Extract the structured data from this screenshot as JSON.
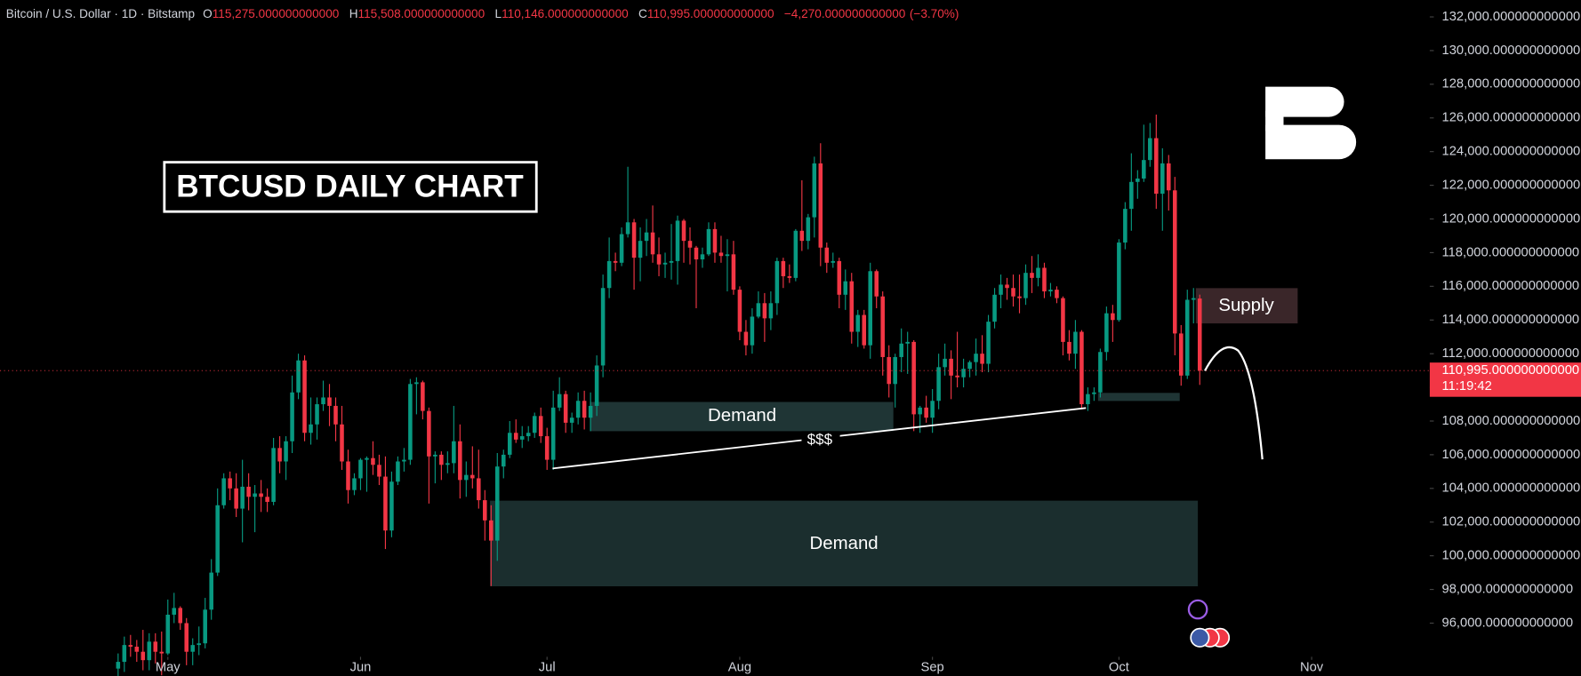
{
  "chart_data": {
    "type": "candlestick",
    "header": {
      "symbol": "Bitcoin / U.S. Dollar · 1D · Bitstamp",
      "ohlc": [
        {
          "key": "O",
          "value": 115275,
          "label": "115,275.000000000000"
        },
        {
          "key": "H",
          "value": 115508,
          "label": "115,508.000000000000"
        },
        {
          "key": "L",
          "value": 110146,
          "label": "110,146.000000000000"
        },
        {
          "key": "C",
          "value": 110995,
          "label": "110,995.000000000000"
        }
      ],
      "change": {
        "value": -4270,
        "label": "−4,270.000000000000"
      },
      "change_pct": {
        "value": -3.7,
        "label": "(−3.70%)"
      }
    },
    "annotations": {
      "title": "BTCUSD DAILY CHART",
      "supply": "Supply",
      "demand_upper": "Demand",
      "demand_lower": "Demand",
      "liquidity": "$$$"
    },
    "last_price": {
      "value": 110995,
      "label": "110,995.000000000000"
    },
    "countdown": "11:19:42",
    "colors": {
      "up": "#089981",
      "down": "#f23645"
    },
    "grid": false,
    "xlim": [
      -19,
      211
    ],
    "xticks": [
      {
        "value": 8,
        "label": "May"
      },
      {
        "value": 39,
        "label": "Jun"
      },
      {
        "value": 69,
        "label": "Jul"
      },
      {
        "value": 100,
        "label": "Aug"
      },
      {
        "value": 131,
        "label": "Sep"
      },
      {
        "value": 161,
        "label": "Oct"
      },
      {
        "value": 192,
        "label": "Nov"
      }
    ],
    "ylim": [
      94000,
      133000
    ],
    "yticks": [
      {
        "value": 96000,
        "label": "96,000.000000000000"
      },
      {
        "value": 98000,
        "label": "98,000.000000000000"
      },
      {
        "value": 100000,
        "label": "100,000.000000000000"
      },
      {
        "value": 102000,
        "label": "102,000.000000000000"
      },
      {
        "value": 104000,
        "label": "104,000.000000000000"
      },
      {
        "value": 106000,
        "label": "106,000.000000000000"
      },
      {
        "value": 108000,
        "label": "108,000.000000000000"
      },
      {
        "value": 110000,
        "label": "110,000.000000000000"
      },
      {
        "value": 112000,
        "label": "112,000.000000000000"
      },
      {
        "value": 114000,
        "label": "114,000.000000000000"
      },
      {
        "value": 116000,
        "label": "116,000.000000000000"
      },
      {
        "value": 118000,
        "label": "118,000.000000000000"
      },
      {
        "value": 120000,
        "label": "120,000.000000000000"
      },
      {
        "value": 122000,
        "label": "122,000.000000000000"
      },
      {
        "value": 124000,
        "label": "124,000.000000000000"
      },
      {
        "value": 126000,
        "label": "126,000.000000000000"
      },
      {
        "value": 128000,
        "label": "128,000.000000000000"
      },
      {
        "value": 130000,
        "label": "130,000.000000000000"
      },
      {
        "value": 132000,
        "label": "132,000.000000000000"
      }
    ],
    "candles": [
      [
        93300,
        94200,
        92700,
        93700
      ],
      [
        93700,
        95200,
        93100,
        94700
      ],
      [
        94700,
        95300,
        94000,
        94600
      ],
      [
        94600,
        95000,
        93700,
        94300
      ],
      [
        94300,
        95600,
        93200,
        93800
      ],
      [
        93800,
        95400,
        93200,
        94900
      ],
      [
        94900,
        95400,
        93600,
        94300
      ],
      [
        94300,
        95500,
        92900,
        94200
      ],
      [
        94200,
        97400,
        94100,
        96500
      ],
      [
        96500,
        97800,
        96000,
        96900
      ],
      [
        96900,
        97000,
        95600,
        96000
      ],
      [
        96000,
        96300,
        93500,
        94300
      ],
      [
        94300,
        95100,
        93500,
        94700
      ],
      [
        94700,
        95800,
        94100,
        94800
      ],
      [
        94800,
        97500,
        94500,
        96800
      ],
      [
        96800,
        99800,
        96200,
        99000
      ],
      [
        99000,
        104000,
        98800,
        103000
      ],
      [
        103000,
        104900,
        102800,
        104600
      ],
      [
        104600,
        105000,
        103300,
        104000
      ],
      [
        104000,
        104900,
        102300,
        102800
      ],
      [
        102800,
        105700,
        100800,
        104100
      ],
      [
        104100,
        104900,
        102700,
        103500
      ],
      [
        103500,
        104200,
        101400,
        103700
      ],
      [
        103700,
        104500,
        102600,
        103500
      ],
      [
        103500,
        104000,
        102600,
        103200
      ],
      [
        103200,
        107000,
        103000,
        106400
      ],
      [
        106400,
        107100,
        104900,
        105600
      ],
      [
        105600,
        107100,
        104500,
        106800
      ],
      [
        106800,
        110700,
        106100,
        109700
      ],
      [
        109700,
        112000,
        109300,
        111600
      ],
      [
        111600,
        111900,
        106800,
        107300
      ],
      [
        107300,
        109400,
        106600,
        107800
      ],
      [
        107800,
        109400,
        106900,
        109000
      ],
      [
        109000,
        110400,
        108600,
        109400
      ],
      [
        109400,
        110200,
        107700,
        108900
      ],
      [
        108900,
        109400,
        106800,
        107800
      ],
      [
        107800,
        108900,
        105100,
        105600
      ],
      [
        105600,
        106300,
        103100,
        103900
      ],
      [
        103900,
        104900,
        103600,
        104600
      ],
      [
        104600,
        105800,
        103900,
        105700
      ],
      [
        105700,
        105900,
        103800,
        105800
      ],
      [
        105800,
        106800,
        104800,
        105400
      ],
      [
        105400,
        106000,
        104200,
        104700
      ],
      [
        104700,
        105900,
        100400,
        101500
      ],
      [
        101500,
        105000,
        101100,
        104400
      ],
      [
        104400,
        105900,
        104200,
        105600
      ],
      [
        105600,
        106400,
        105000,
        105700
      ],
      [
        105700,
        110500,
        105400,
        110200
      ],
      [
        110200,
        110600,
        108400,
        110300
      ],
      [
        110300,
        110400,
        108100,
        108600
      ],
      [
        108600,
        108800,
        103100,
        105900
      ],
      [
        105900,
        106200,
        104300,
        106000
      ],
      [
        106000,
        106200,
        104500,
        105400
      ],
      [
        105400,
        106200,
        104900,
        105500
      ],
      [
        105500,
        108900,
        104900,
        106800
      ],
      [
        106800,
        107800,
        103400,
        104500
      ],
      [
        104500,
        105600,
        103500,
        104800
      ],
      [
        104800,
        106500,
        104000,
        104600
      ],
      [
        104600,
        106300,
        102800,
        103300
      ],
      [
        103300,
        103900,
        100900,
        102100
      ],
      [
        102100,
        103000,
        98200,
        100900
      ],
      [
        100900,
        106100,
        99700,
        105300
      ],
      [
        105300,
        106300,
        104600,
        106000
      ],
      [
        106000,
        108000,
        105800,
        107300
      ],
      [
        107300,
        108100,
        106700,
        106900
      ],
      [
        106900,
        107700,
        106400,
        107100
      ],
      [
        107100,
        107700,
        106800,
        107300
      ],
      [
        107300,
        108500,
        107000,
        108300
      ],
      [
        108300,
        108800,
        106700,
        107100
      ],
      [
        107100,
        107600,
        105100,
        105700
      ],
      [
        105700,
        109800,
        105100,
        108800
      ],
      [
        108800,
        110600,
        108600,
        109600
      ],
      [
        109600,
        109800,
        107300,
        107900
      ],
      [
        107900,
        108500,
        107300,
        108200
      ],
      [
        108200,
        109700,
        107800,
        109200
      ],
      [
        109200,
        109800,
        107500,
        108200
      ],
      [
        108200,
        109700,
        107400,
        108900
      ],
      [
        108900,
        111900,
        108300,
        111300
      ],
      [
        111300,
        116700,
        110600,
        115900
      ],
      [
        115900,
        118900,
        115300,
        117500
      ],
      [
        117500,
        118000,
        116900,
        117400
      ],
      [
        117400,
        119500,
        117200,
        119100
      ],
      [
        119100,
        123100,
        118900,
        119800
      ],
      [
        119800,
        120000,
        115800,
        117700
      ],
      [
        117700,
        119500,
        116300,
        118700
      ],
      [
        118700,
        120000,
        117800,
        119200
      ],
      [
        119200,
        120800,
        117400,
        117900
      ],
      [
        117900,
        118900,
        116600,
        117300
      ],
      [
        117300,
        118000,
        116500,
        117400
      ],
      [
        117400,
        119700,
        116400,
        117500
      ],
      [
        117500,
        120200,
        116100,
        119900
      ],
      [
        119900,
        120000,
        117400,
        118700
      ],
      [
        118700,
        119500,
        117300,
        118300
      ],
      [
        118300,
        118400,
        114700,
        117600
      ],
      [
        117600,
        118300,
        117100,
        117900
      ],
      [
        117900,
        119800,
        117800,
        119400
      ],
      [
        119400,
        119800,
        117400,
        118000
      ],
      [
        118000,
        119000,
        117400,
        117800
      ],
      [
        117800,
        118800,
        115700,
        117900
      ],
      [
        117900,
        118700,
        115500,
        115800
      ],
      [
        115800,
        116000,
        112800,
        113300
      ],
      [
        113300,
        114000,
        111900,
        112500
      ],
      [
        112500,
        114700,
        112000,
        114200
      ],
      [
        114200,
        115700,
        114100,
        115000
      ],
      [
        115000,
        115600,
        112700,
        114100
      ],
      [
        114100,
        115700,
        113400,
        115000
      ],
      [
        115000,
        117700,
        114300,
        117500
      ],
      [
        117500,
        117700,
        115900,
        116600
      ],
      [
        116600,
        117300,
        116200,
        116500
      ],
      [
        116500,
        119400,
        116300,
        119300
      ],
      [
        119300,
        122300,
        118100,
        118700
      ],
      [
        118700,
        120300,
        118200,
        120100
      ],
      [
        120100,
        123700,
        118900,
        123300
      ],
      [
        123300,
        124500,
        117200,
        118300
      ],
      [
        118300,
        118600,
        116800,
        117400
      ],
      [
        117400,
        118000,
        117100,
        117500
      ],
      [
        117500,
        117700,
        114700,
        115500
      ],
      [
        115500,
        117000,
        114600,
        116300
      ],
      [
        116300,
        116800,
        112600,
        113300
      ],
      [
        113300,
        114600,
        112400,
        114300
      ],
      [
        114300,
        114600,
        112300,
        112500
      ],
      [
        112500,
        117400,
        111700,
        116900
      ],
      [
        116900,
        117000,
        114700,
        115400
      ],
      [
        115400,
        115700,
        110700,
        111800
      ],
      [
        111800,
        112500,
        109400,
        110200
      ],
      [
        110200,
        112000,
        108800,
        111800
      ],
      [
        111800,
        113500,
        110900,
        112600
      ],
      [
        112600,
        113300,
        110800,
        112700
      ],
      [
        112700,
        112800,
        107400,
        108400
      ],
      [
        108400,
        108900,
        107300,
        108800
      ],
      [
        108800,
        109500,
        107900,
        108200
      ],
      [
        108200,
        109900,
        107300,
        109200
      ],
      [
        109200,
        112000,
        108700,
        111200
      ],
      [
        111200,
        112600,
        110700,
        111700
      ],
      [
        111700,
        112200,
        109300,
        110700
      ],
      [
        110700,
        113300,
        110000,
        110600
      ],
      [
        110600,
        111700,
        110000,
        111100
      ],
      [
        111100,
        111600,
        110600,
        111500
      ],
      [
        111500,
        112900,
        110700,
        112000
      ],
      [
        112000,
        113100,
        110900,
        111400
      ],
      [
        111400,
        114300,
        110900,
        113900
      ],
      [
        113900,
        115900,
        113500,
        115500
      ],
      [
        115500,
        116700,
        114700,
        116100
      ],
      [
        116100,
        116500,
        115200,
        115900
      ],
      [
        115900,
        116700,
        114800,
        115400
      ],
      [
        115400,
        116700,
        114400,
        115300
      ],
      [
        115300,
        117300,
        114900,
        116800
      ],
      [
        116800,
        117800,
        115600,
        116500
      ],
      [
        116500,
        117900,
        116000,
        117100
      ],
      [
        117100,
        117400,
        115300,
        115700
      ],
      [
        115700,
        116200,
        115400,
        115800
      ],
      [
        115800,
        116000,
        115000,
        115300
      ],
      [
        115300,
        115400,
        111900,
        112700
      ],
      [
        112700,
        113400,
        111600,
        112000
      ],
      [
        112000,
        114000,
        111100,
        113300
      ],
      [
        113300,
        113400,
        108700,
        109000
      ],
      [
        109000,
        110000,
        108600,
        109600
      ],
      [
        109600,
        110000,
        109200,
        109700
      ],
      [
        109700,
        112300,
        109400,
        112100
      ],
      [
        112100,
        114800,
        111600,
        114400
      ],
      [
        114400,
        114900,
        112700,
        114000
      ],
      [
        114000,
        118800,
        113900,
        118600
      ],
      [
        118600,
        121000,
        118200,
        120600
      ],
      [
        120600,
        123900,
        119300,
        122200
      ],
      [
        122200,
        122900,
        121200,
        122400
      ],
      [
        122400,
        125600,
        122200,
        123500
      ],
      [
        123500,
        125700,
        123100,
        124800
      ],
      [
        124800,
        126200,
        120600,
        121500
      ],
      [
        121500,
        124200,
        119300,
        123300
      ],
      [
        123300,
        123800,
        120500,
        121700
      ],
      [
        121700,
        122500,
        111900,
        113200
      ],
      [
        113200,
        113700,
        110100,
        110700
      ],
      [
        110700,
        115800,
        110500,
        115200
      ],
      [
        115200,
        115900,
        113800,
        115300
      ],
      [
        115275,
        115508,
        110146,
        110995
      ]
    ]
  }
}
